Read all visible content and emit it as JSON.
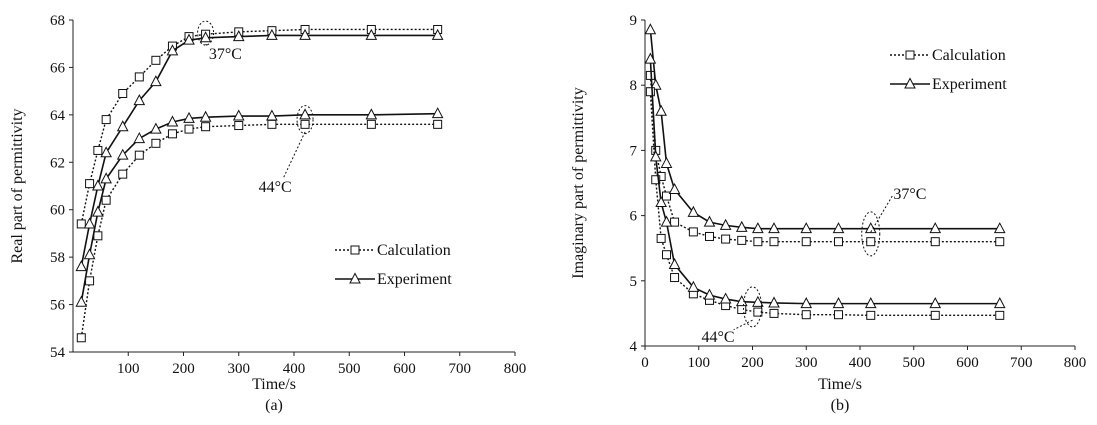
{
  "chart_data": [
    {
      "type": "line",
      "panel_label": "(a)",
      "xlabel": "Time/s",
      "ylabel": "Real part of permittivity",
      "xlim": [
        0,
        800
      ],
      "ylim": [
        54,
        68
      ],
      "xticks": [
        100,
        200,
        300,
        400,
        500,
        600,
        700,
        800
      ],
      "yticks": [
        54,
        56,
        58,
        60,
        62,
        64,
        66,
        68
      ],
      "legend": {
        "position": "right-middle",
        "entries": [
          "Calculation",
          "Experiment"
        ]
      },
      "annotations": [
        {
          "text": "37°C",
          "x": 240,
          "y": 67.4
        },
        {
          "text": "44°C",
          "x": 420,
          "y": 64.0
        }
      ],
      "series": [
        {
          "name": "Calculation",
          "group": "37°C",
          "style": "dotted",
          "marker": "square",
          "x": [
            15,
            30,
            45,
            60,
            90,
            120,
            150,
            180,
            210,
            240,
            300,
            360,
            420,
            540,
            660
          ],
          "y": [
            59.4,
            61.1,
            62.5,
            63.8,
            64.9,
            65.6,
            66.3,
            66.9,
            67.3,
            67.4,
            67.5,
            67.55,
            67.6,
            67.6,
            67.6
          ]
        },
        {
          "name": "Experiment",
          "group": "37°C",
          "style": "solid",
          "marker": "triangle",
          "x": [
            15,
            30,
            45,
            60,
            90,
            120,
            150,
            180,
            210,
            240,
            300,
            360,
            420,
            540,
            660
          ],
          "y": [
            57.6,
            59.4,
            61.0,
            62.4,
            63.5,
            64.6,
            65.4,
            66.7,
            67.15,
            67.25,
            67.3,
            67.35,
            67.35,
            67.35,
            67.35
          ]
        },
        {
          "name": "Calculation",
          "group": "44°C",
          "style": "dotted",
          "marker": "square",
          "x": [
            15,
            30,
            45,
            60,
            90,
            120,
            150,
            180,
            210,
            240,
            300,
            360,
            420,
            540,
            660
          ],
          "y": [
            54.6,
            57.0,
            58.9,
            60.4,
            61.5,
            62.3,
            62.8,
            63.2,
            63.4,
            63.5,
            63.55,
            63.6,
            63.6,
            63.6,
            63.6
          ]
        },
        {
          "name": "Experiment",
          "group": "44°C",
          "style": "solid",
          "marker": "triangle",
          "x": [
            15,
            30,
            45,
            60,
            90,
            120,
            150,
            180,
            210,
            240,
            300,
            360,
            420,
            540,
            660
          ],
          "y": [
            56.1,
            58.1,
            59.9,
            61.3,
            62.3,
            63.0,
            63.4,
            63.7,
            63.85,
            63.9,
            63.95,
            63.95,
            64.0,
            64.0,
            64.05
          ]
        }
      ]
    },
    {
      "type": "line",
      "panel_label": "(b)",
      "xlabel": "Time/s",
      "ylabel": "Imaginary part of permittivity",
      "xlim": [
        0,
        800
      ],
      "ylim": [
        4,
        9
      ],
      "xticks": [
        0,
        100,
        200,
        300,
        400,
        500,
        600,
        700,
        800
      ],
      "yticks": [
        4,
        5,
        6,
        7,
        8,
        9
      ],
      "legend": {
        "position": "top-right",
        "entries": [
          "Calculation",
          "Experiment"
        ]
      },
      "annotations": [
        {
          "text": "37°C",
          "x": 420,
          "y": 5.7
        },
        {
          "text": "44°C",
          "x": 200,
          "y": 4.6
        }
      ],
      "series": [
        {
          "name": "Calculation",
          "group": "37°C",
          "style": "dotted",
          "marker": "square",
          "x": [
            10,
            20,
            30,
            40,
            55,
            90,
            120,
            150,
            180,
            210,
            240,
            300,
            360,
            420,
            540,
            660
          ],
          "y": [
            8.15,
            7.0,
            6.6,
            6.3,
            5.9,
            5.75,
            5.68,
            5.64,
            5.62,
            5.6,
            5.6,
            5.6,
            5.6,
            5.6,
            5.6,
            5.6
          ]
        },
        {
          "name": "Experiment",
          "group": "37°C",
          "style": "solid",
          "marker": "triangle",
          "x": [
            10,
            20,
            30,
            40,
            55,
            90,
            120,
            150,
            180,
            210,
            240,
            300,
            360,
            420,
            540,
            660
          ],
          "y": [
            8.85,
            8.0,
            7.6,
            6.8,
            6.4,
            6.05,
            5.9,
            5.85,
            5.82,
            5.8,
            5.8,
            5.8,
            5.8,
            5.8,
            5.8,
            5.8
          ]
        },
        {
          "name": "Calculation",
          "group": "44°C",
          "style": "dotted",
          "marker": "square",
          "x": [
            10,
            20,
            30,
            40,
            55,
            90,
            120,
            150,
            180,
            210,
            240,
            300,
            360,
            420,
            540,
            660
          ],
          "y": [
            7.9,
            6.55,
            5.65,
            5.4,
            5.05,
            4.8,
            4.7,
            4.62,
            4.56,
            4.52,
            4.5,
            4.48,
            4.48,
            4.47,
            4.47,
            4.47
          ]
        },
        {
          "name": "Experiment",
          "group": "44°C",
          "style": "solid",
          "marker": "triangle",
          "x": [
            10,
            20,
            30,
            40,
            55,
            90,
            120,
            150,
            180,
            210,
            240,
            300,
            360,
            420,
            540,
            660
          ],
          "y": [
            8.4,
            6.9,
            6.2,
            5.9,
            5.25,
            4.9,
            4.78,
            4.72,
            4.68,
            4.67,
            4.66,
            4.65,
            4.65,
            4.65,
            4.65,
            4.65
          ]
        }
      ]
    }
  ]
}
